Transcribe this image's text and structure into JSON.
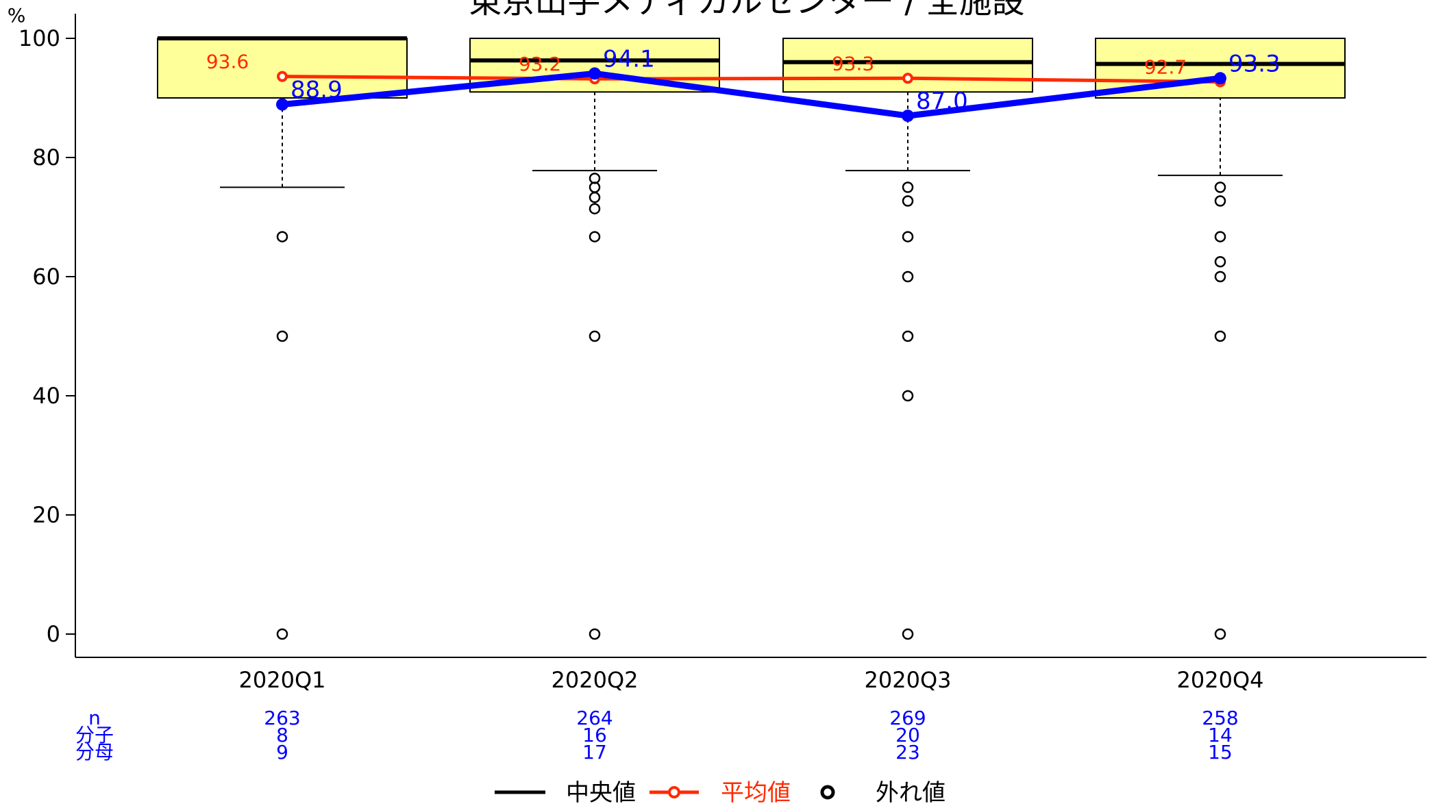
{
  "chart_data": {
    "type": "box",
    "title": "東京山手メディカルセンター / 全施設",
    "ylabel": "%",
    "ylim": [
      0,
      100
    ],
    "yticks": [
      0,
      20,
      40,
      60,
      80,
      100
    ],
    "grid": false,
    "legend_position": "bottom",
    "categories": [
      "2020Q1",
      "2020Q2",
      "2020Q3",
      "2020Q4"
    ],
    "boxes": [
      {
        "q1": 90.0,
        "median": 100.0,
        "q3": 100.0,
        "whisker_low": 75.0,
        "whisker_high": 100.0,
        "outliers": [
          66.7,
          50.0,
          0.0
        ]
      },
      {
        "q1": 91.0,
        "median": 96.3,
        "q3": 100.0,
        "whisker_low": 77.8,
        "whisker_high": 100.0,
        "outliers": [
          76.5,
          75.0,
          73.3,
          71.4,
          66.7,
          50.0,
          0.0
        ]
      },
      {
        "q1": 91.0,
        "median": 96.0,
        "q3": 100.0,
        "whisker_low": 77.8,
        "whisker_high": 100.0,
        "outliers": [
          75.0,
          72.7,
          66.7,
          60.0,
          50.0,
          40.0,
          0.0
        ]
      },
      {
        "q1": 90.0,
        "median": 95.7,
        "q3": 100.0,
        "whisker_low": 77.0,
        "whisker_high": 100.0,
        "outliers": [
          75.0,
          72.7,
          66.7,
          62.5,
          60.0,
          50.0,
          0.0
        ]
      }
    ],
    "mean": {
      "values": [
        93.6,
        93.2,
        93.3,
        92.7
      ],
      "labels": [
        "93.6",
        "93.2",
        "93.3",
        "92.7"
      ]
    },
    "hospital": {
      "values": [
        88.9,
        94.1,
        87.0,
        93.3
      ],
      "labels": [
        "88.9",
        "94.1",
        "87.0",
        "93.3"
      ]
    },
    "table": {
      "row_labels": [
        "n",
        "分子",
        "分母"
      ],
      "rows": [
        [
          "263",
          "264",
          "269",
          "258"
        ],
        [
          "8",
          "16",
          "20",
          "14"
        ],
        [
          "9",
          "17",
          "23",
          "15"
        ]
      ]
    },
    "legend": [
      {
        "label": "中央値",
        "kind": "median"
      },
      {
        "label": "平均値",
        "kind": "mean"
      },
      {
        "label": "外れ値",
        "kind": "outlier"
      }
    ],
    "colors": {
      "box_fill": "#ffff99",
      "mean": "#ff2a00",
      "hospital": "#0000ff",
      "table_text": "#0000ff",
      "axis": "#000000"
    }
  }
}
